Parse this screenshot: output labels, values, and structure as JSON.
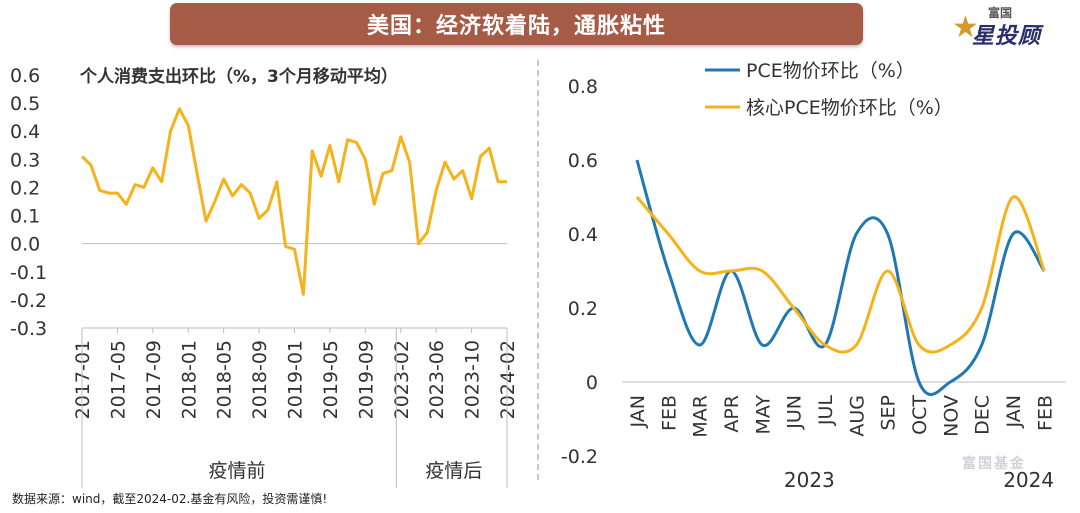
{
  "header": {
    "title": "美国：经济软着陆，通胀粘性"
  },
  "logo": {
    "small": "富国",
    "big": "星投顾",
    "star_color": "#d39b2a"
  },
  "source_note": "数据来源：wind，截至2024-02.基金有风险，投资需谨慎!",
  "watermark": "富国基金",
  "colors": {
    "orange": "#f5b21b",
    "blue": "#1f78b4",
    "banner": "#a65b47"
  },
  "chart_data": [
    {
      "type": "line",
      "title": "个人消费支出环比（%，3个月移动平均）",
      "ylim": [
        -0.3,
        0.6
      ],
      "yticks": [
        "0.6",
        "0.5",
        "0.4",
        "0.3",
        "0.2",
        "0.1",
        "0.0",
        "-0.1",
        "-0.2",
        "-0.3"
      ],
      "xtick_labels": [
        "2017-01",
        "2017-05",
        "2017-09",
        "2018-01",
        "2018-05",
        "2018-09",
        "2019-01",
        "2019-05",
        "2019-09",
        "2023-02",
        "2023-06",
        "2023-10",
        "2024-02"
      ],
      "xtick_index": [
        0,
        4,
        8,
        12,
        16,
        20,
        24,
        28,
        32,
        36,
        40,
        44,
        48
      ],
      "groups": [
        {
          "label": "疫情前",
          "start": 0,
          "end": 35
        },
        {
          "label": "疫情后",
          "start": 36,
          "end": 48
        }
      ],
      "series": [
        {
          "values": [
            0.31,
            0.28,
            0.19,
            0.18,
            0.18,
            0.14,
            0.21,
            0.2,
            0.27,
            0.22,
            0.4,
            0.48,
            0.42,
            0.25,
            0.08,
            0.15,
            0.23,
            0.17,
            0.21,
            0.18,
            0.09,
            0.12,
            0.22,
            -0.01,
            -0.02,
            -0.18,
            0.33,
            0.24,
            0.35,
            0.22,
            0.37,
            0.36,
            0.3,
            0.14,
            0.25,
            0.26,
            0.38,
            0.29,
            0.0,
            0.04,
            0.19,
            0.29,
            0.23,
            0.26,
            0.16,
            0.31,
            0.34,
            0.22,
            0.22
          ]
        }
      ]
    },
    {
      "type": "line",
      "categories": [
        "JAN",
        "FEB",
        "MAR",
        "APR",
        "MAY",
        "JUN",
        "JUL",
        "AUG",
        "SEP",
        "OCT",
        "NOV",
        "DEC",
        "JAN",
        "FEB"
      ],
      "year_labels": [
        {
          "label": "2023",
          "start": 0,
          "end": 11
        },
        {
          "label": "2024",
          "start": 12,
          "end": 13
        }
      ],
      "ylim": [
        -0.2,
        0.8
      ],
      "yticks": [
        "0.8",
        "0.6",
        "0.4",
        "0.2",
        "0",
        "-0.2"
      ],
      "legend_position": "top",
      "series": [
        {
          "name": "PCE物价环比（%）",
          "values": [
            0.6,
            0.3,
            0.1,
            0.3,
            0.1,
            0.2,
            0.1,
            0.4,
            0.4,
            0.0,
            0.0,
            0.1,
            0.4,
            0.3
          ]
        },
        {
          "name": "核心PCE物价环比（%）",
          "values": [
            0.5,
            0.4,
            0.3,
            0.3,
            0.3,
            0.2,
            0.1,
            0.1,
            0.3,
            0.1,
            0.1,
            0.2,
            0.5,
            0.3
          ]
        }
      ]
    }
  ]
}
